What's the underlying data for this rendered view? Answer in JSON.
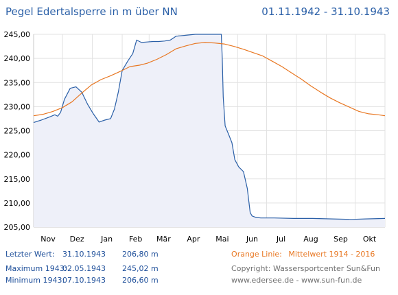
{
  "header": {
    "title": "Pegel Edertalsperre in m über NN",
    "date_range": "01.11.1942 - 31.10.1943"
  },
  "stats": {
    "last": {
      "label": "Letzter Wert:",
      "date": "31.10.1943",
      "value": "206,80 m"
    },
    "max": {
      "label": "Maximum 1943:",
      "date": "02.05.1943",
      "value": "245,02 m"
    },
    "min": {
      "label": "Minimum  1943:",
      "date": "07.10.1943",
      "value": "206,60 m"
    }
  },
  "legend_info": {
    "orange_label": "Orange Linie:",
    "orange_value": "Mittelwert   1914 - 2016",
    "copyright": "Copyright: Wassersportcenter Sun&Fun",
    "websites": "www.edersee.de  -  www.sun-fun.de"
  },
  "colors": {
    "blue": "#2a5fa7",
    "orange": "#e87722",
    "fill": "#eef0f9",
    "grid": "#e2e2e2"
  },
  "chart_data": {
    "type": "line",
    "xlabel": "",
    "ylabel": "",
    "xlim": [
      0,
      365
    ],
    "ylim": [
      205,
      245
    ],
    "y_ticks": [
      205,
      210,
      215,
      220,
      225,
      230,
      235,
      240,
      245
    ],
    "y_tick_labels": [
      "205,00",
      "210,00",
      "215,00",
      "220,00",
      "225,00",
      "230,00",
      "235,00",
      "240,00",
      "245,00"
    ],
    "x_ticks": [
      {
        "label": "Nov",
        "day": 15
      },
      {
        "label": "Dez",
        "day": 45
      },
      {
        "label": "Jan",
        "day": 76
      },
      {
        "label": "Feb",
        "day": 106
      },
      {
        "label": "Mär",
        "day": 135
      },
      {
        "label": "Apr",
        "day": 166
      },
      {
        "label": "Mai",
        "day": 196
      },
      {
        "label": "Jun",
        "day": 227
      },
      {
        "label": "Jul",
        "day": 257
      },
      {
        "label": "Aug",
        "day": 288
      },
      {
        "label": "Sep",
        "day": 319
      },
      {
        "label": "Okt",
        "day": 349
      }
    ],
    "grid": true,
    "series": [
      {
        "color": "#2a5fa7",
        "fill": true,
        "points": [
          [
            0,
            226.7
          ],
          [
            8,
            227.2
          ],
          [
            16,
            227.8
          ],
          [
            22,
            228.3
          ],
          [
            25,
            228.0
          ],
          [
            28,
            228.8
          ],
          [
            32,
            231.5
          ],
          [
            38,
            233.8
          ],
          [
            44,
            234.1
          ],
          [
            50,
            233.0
          ],
          [
            56,
            230.5
          ],
          [
            62,
            228.5
          ],
          [
            68,
            226.8
          ],
          [
            74,
            227.2
          ],
          [
            80,
            227.5
          ],
          [
            84,
            229.5
          ],
          [
            88,
            233.0
          ],
          [
            92,
            237.5
          ],
          [
            98,
            239.5
          ],
          [
            103,
            241.0
          ],
          [
            107,
            243.8
          ],
          [
            112,
            243.3
          ],
          [
            118,
            243.4
          ],
          [
            124,
            243.5
          ],
          [
            130,
            243.5
          ],
          [
            136,
            243.6
          ],
          [
            142,
            243.8
          ],
          [
            148,
            244.6
          ],
          [
            158,
            244.8
          ],
          [
            168,
            245.0
          ],
          [
            178,
            245.0
          ],
          [
            188,
            245.0
          ],
          [
            193,
            245.0
          ],
          [
            195,
            245.0
          ],
          [
            196,
            240.0
          ],
          [
            197,
            232.0
          ],
          [
            199,
            226.0
          ],
          [
            203,
            224.0
          ],
          [
            206,
            222.5
          ],
          [
            209,
            219.0
          ],
          [
            213,
            217.5
          ],
          [
            218,
            216.5
          ],
          [
            222,
            213.0
          ],
          [
            225,
            208.0
          ],
          [
            227,
            207.3
          ],
          [
            231,
            207.0
          ],
          [
            236,
            206.9
          ],
          [
            250,
            206.9
          ],
          [
            270,
            206.8
          ],
          [
            290,
            206.8
          ],
          [
            310,
            206.7
          ],
          [
            330,
            206.6
          ],
          [
            345,
            206.7
          ],
          [
            365,
            206.8
          ]
        ]
      },
      {
        "color": "#e87722",
        "fill": false,
        "points": [
          [
            0,
            228.1
          ],
          [
            10,
            228.4
          ],
          [
            20,
            229.0
          ],
          [
            30,
            229.8
          ],
          [
            40,
            231.0
          ],
          [
            50,
            232.8
          ],
          [
            60,
            234.5
          ],
          [
            70,
            235.6
          ],
          [
            80,
            236.4
          ],
          [
            90,
            237.3
          ],
          [
            100,
            238.3
          ],
          [
            110,
            238.6
          ],
          [
            118,
            239.0
          ],
          [
            128,
            239.8
          ],
          [
            138,
            240.8
          ],
          [
            148,
            242.0
          ],
          [
            158,
            242.6
          ],
          [
            168,
            243.1
          ],
          [
            178,
            243.3
          ],
          [
            188,
            243.2
          ],
          [
            198,
            243.0
          ],
          [
            208,
            242.5
          ],
          [
            218,
            241.9
          ],
          [
            228,
            241.2
          ],
          [
            238,
            240.5
          ],
          [
            248,
            239.4
          ],
          [
            258,
            238.3
          ],
          [
            268,
            237.0
          ],
          [
            278,
            235.7
          ],
          [
            288,
            234.3
          ],
          [
            298,
            233.0
          ],
          [
            308,
            231.8
          ],
          [
            318,
            230.8
          ],
          [
            328,
            229.9
          ],
          [
            338,
            229.0
          ],
          [
            348,
            228.5
          ],
          [
            358,
            228.3
          ],
          [
            365,
            228.1
          ]
        ]
      }
    ]
  }
}
